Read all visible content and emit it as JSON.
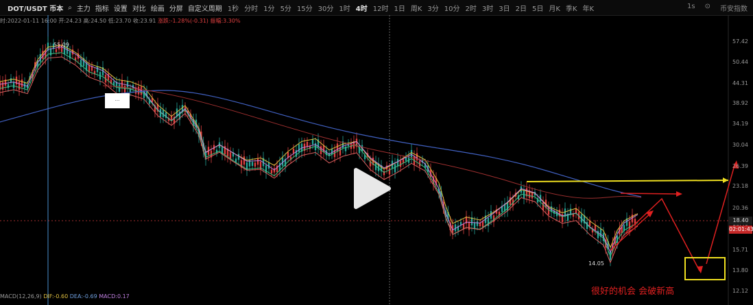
{
  "toolbar": {
    "symbol": "DOT/USDT 币本",
    "search_icon": "search-icon",
    "items": [
      "主力",
      "指标",
      "设置",
      "对比",
      "绘画",
      "分屏",
      "自定义周期"
    ],
    "intervals": [
      "1秒",
      "分时",
      "1分",
      "5分",
      "15分",
      "30分",
      "1时",
      "4时",
      "12时",
      "1日",
      "周K",
      "3分",
      "10分",
      "2时",
      "3时",
      "3日",
      "2日",
      "5日",
      "月K",
      "季K",
      "年K"
    ],
    "active_interval": "4时",
    "right": [
      "1s",
      "⊙",
      "币安指数"
    ]
  },
  "ohlc": {
    "date": "时:2022-01-11 16:00",
    "open": "开:24.23",
    "high": "高:24.50",
    "low": "低:23.70",
    "close": "收:23.91",
    "change": "涨跌:-1.28%(-0.31)",
    "amplitude": "振幅:3.30%"
  },
  "price_axis": [
    "57.42",
    "50.44",
    "44.31",
    "38.92",
    "34.19",
    "30.04",
    "26.39",
    "23.18",
    "20.36",
    "18.40",
    "15.71",
    "13.80",
    "12.12"
  ],
  "current_price": "18.40",
  "countdown": "02:01:43",
  "macd": {
    "label": "MACD(12,26,9)",
    "dif": "DIF:-0.60",
    "dea": "DEA:-0.69",
    "macd": "MACD:0.17"
  },
  "high_marker": "55.09",
  "low_marker": "14.05",
  "annotation": "很好的机会 会破新高",
  "colors": {
    "up": "#26a69a",
    "down": "#e04040",
    "annot_red": "#e02020",
    "annot_yellow": "#f0e020"
  }
}
